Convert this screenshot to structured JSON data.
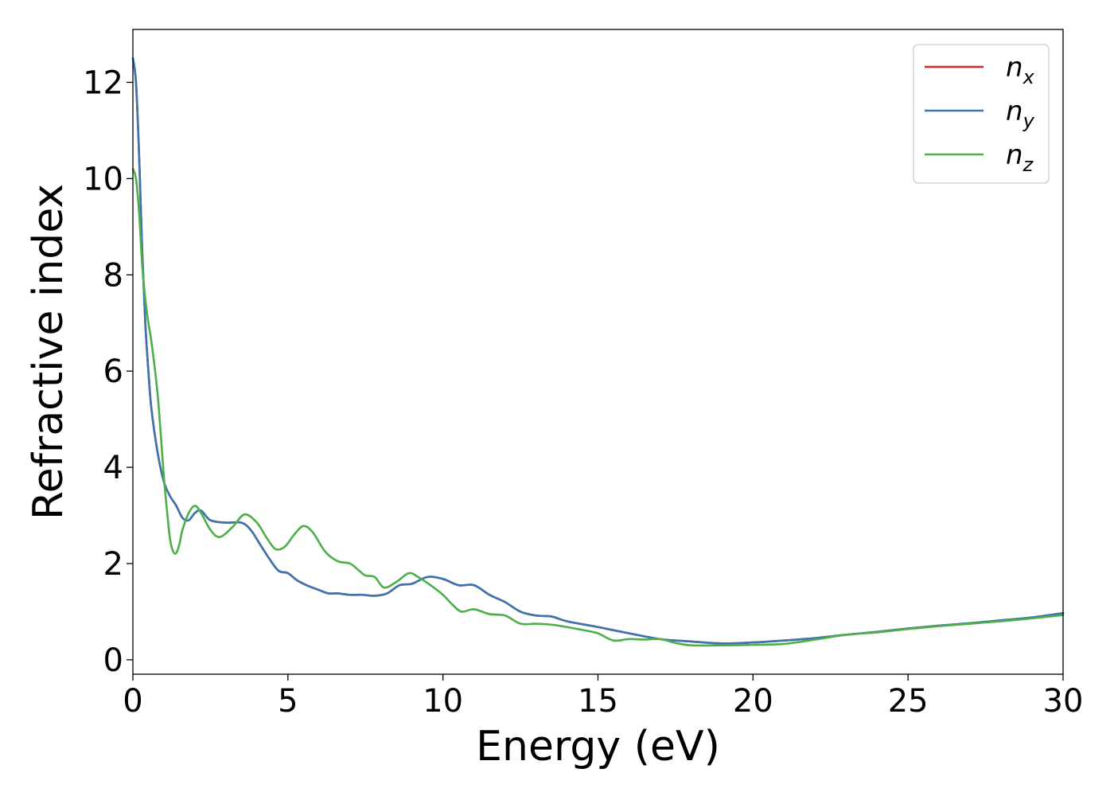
{
  "chart_data": {
    "type": "line",
    "xlabel": "Energy (eV)",
    "ylabel": "Refractive index",
    "xlim": [
      0,
      30
    ],
    "ylim": [
      -0.3,
      13.1
    ],
    "xticks": [
      "0",
      "5",
      "10",
      "15",
      "20",
      "25",
      "30"
    ],
    "yticks": [
      "0",
      "2",
      "4",
      "6",
      "8",
      "10",
      "12"
    ],
    "grid": false,
    "legend_position": "top-right",
    "series": [
      {
        "name": "n_x",
        "label_main": "n",
        "label_sub": "x",
        "color": "#d62728",
        "x": [
          0,
          0.1,
          0.2,
          0.3,
          0.4,
          0.5,
          0.6,
          0.8,
          1.0,
          1.2,
          1.4,
          1.6,
          1.8,
          2.0,
          2.2,
          2.5,
          3.0,
          3.5,
          3.8,
          4.1,
          4.4,
          4.7,
          5.0,
          5.3,
          5.6,
          6.0,
          6.3,
          6.6,
          7.0,
          7.4,
          7.8,
          8.2,
          8.6,
          9.0,
          9.5,
          10.0,
          10.5,
          11.0,
          11.5,
          12.0,
          12.5,
          13.0,
          13.5,
          14.0,
          15.0,
          16.0,
          17.0,
          18.0,
          19.0,
          20.0,
          21.0,
          22.0,
          23.0,
          24.0,
          25.0,
          26.0,
          27.0,
          28.0,
          29.0,
          30.0
        ],
        "y": [
          12.5,
          12.0,
          10.5,
          8.5,
          7.0,
          6.0,
          5.2,
          4.3,
          3.7,
          3.4,
          3.2,
          2.95,
          2.9,
          3.05,
          3.1,
          2.9,
          2.85,
          2.85,
          2.7,
          2.4,
          2.1,
          1.85,
          1.8,
          1.65,
          1.55,
          1.45,
          1.38,
          1.38,
          1.35,
          1.35,
          1.33,
          1.38,
          1.55,
          1.58,
          1.72,
          1.68,
          1.55,
          1.55,
          1.35,
          1.2,
          1.0,
          0.92,
          0.9,
          0.8,
          0.68,
          0.55,
          0.43,
          0.38,
          0.34,
          0.36,
          0.4,
          0.45,
          0.52,
          0.58,
          0.65,
          0.71,
          0.76,
          0.82,
          0.88,
          0.97
        ]
      },
      {
        "name": "n_y",
        "label_main": "n",
        "label_sub": "y",
        "color": "#3a75b0",
        "x": [
          0,
          0.1,
          0.2,
          0.3,
          0.4,
          0.5,
          0.6,
          0.8,
          1.0,
          1.2,
          1.4,
          1.6,
          1.8,
          2.0,
          2.2,
          2.5,
          3.0,
          3.5,
          3.8,
          4.1,
          4.4,
          4.7,
          5.0,
          5.3,
          5.6,
          6.0,
          6.3,
          6.6,
          7.0,
          7.4,
          7.8,
          8.2,
          8.6,
          9.0,
          9.5,
          10.0,
          10.5,
          11.0,
          11.5,
          12.0,
          12.5,
          13.0,
          13.5,
          14.0,
          15.0,
          16.0,
          17.0,
          18.0,
          19.0,
          20.0,
          21.0,
          22.0,
          23.0,
          24.0,
          25.0,
          26.0,
          27.0,
          28.0,
          29.0,
          30.0
        ],
        "y": [
          12.5,
          12.0,
          10.5,
          8.5,
          7.0,
          6.0,
          5.2,
          4.3,
          3.7,
          3.4,
          3.2,
          2.95,
          2.9,
          3.05,
          3.1,
          2.9,
          2.85,
          2.85,
          2.7,
          2.4,
          2.1,
          1.85,
          1.8,
          1.65,
          1.55,
          1.45,
          1.38,
          1.38,
          1.35,
          1.35,
          1.33,
          1.38,
          1.55,
          1.58,
          1.72,
          1.68,
          1.55,
          1.55,
          1.35,
          1.2,
          1.0,
          0.92,
          0.9,
          0.8,
          0.68,
          0.55,
          0.43,
          0.38,
          0.34,
          0.36,
          0.4,
          0.45,
          0.52,
          0.58,
          0.65,
          0.71,
          0.76,
          0.82,
          0.88,
          0.97
        ]
      },
      {
        "name": "n_z",
        "label_main": "n",
        "label_sub": "z",
        "color": "#4daf4a",
        "x": [
          0,
          0.1,
          0.2,
          0.3,
          0.4,
          0.5,
          0.6,
          0.8,
          1.0,
          1.1,
          1.2,
          1.3,
          1.4,
          1.5,
          1.6,
          1.8,
          2.0,
          2.2,
          2.5,
          2.8,
          3.2,
          3.6,
          4.0,
          4.3,
          4.6,
          4.9,
          5.2,
          5.5,
          5.8,
          6.2,
          6.6,
          7.0,
          7.3,
          7.5,
          7.8,
          8.1,
          8.5,
          8.9,
          9.2,
          9.6,
          10.0,
          10.3,
          10.6,
          11.0,
          11.5,
          12.0,
          12.5,
          13.0,
          13.5,
          14.0,
          14.5,
          15.0,
          15.5,
          16.0,
          16.5,
          17.0,
          17.5,
          18.0,
          19.0,
          20.0,
          21.0,
          22.0,
          23.0,
          24.0,
          25.0,
          26.0,
          27.0,
          28.0,
          29.0,
          30.0
        ],
        "y": [
          10.2,
          10.0,
          9.3,
          8.2,
          7.5,
          7.0,
          6.6,
          5.5,
          3.8,
          3.1,
          2.5,
          2.25,
          2.22,
          2.4,
          2.7,
          3.05,
          3.2,
          3.05,
          2.7,
          2.55,
          2.75,
          3.02,
          2.85,
          2.55,
          2.3,
          2.35,
          2.6,
          2.78,
          2.65,
          2.25,
          2.05,
          2.0,
          1.85,
          1.75,
          1.72,
          1.5,
          1.62,
          1.8,
          1.72,
          1.55,
          1.35,
          1.15,
          1.0,
          1.05,
          0.95,
          0.92,
          0.75,
          0.75,
          0.73,
          0.68,
          0.62,
          0.55,
          0.4,
          0.43,
          0.42,
          0.43,
          0.35,
          0.3,
          0.3,
          0.31,
          0.33,
          0.42,
          0.52,
          0.57,
          0.64,
          0.7,
          0.75,
          0.8,
          0.86,
          0.93
        ]
      }
    ]
  }
}
